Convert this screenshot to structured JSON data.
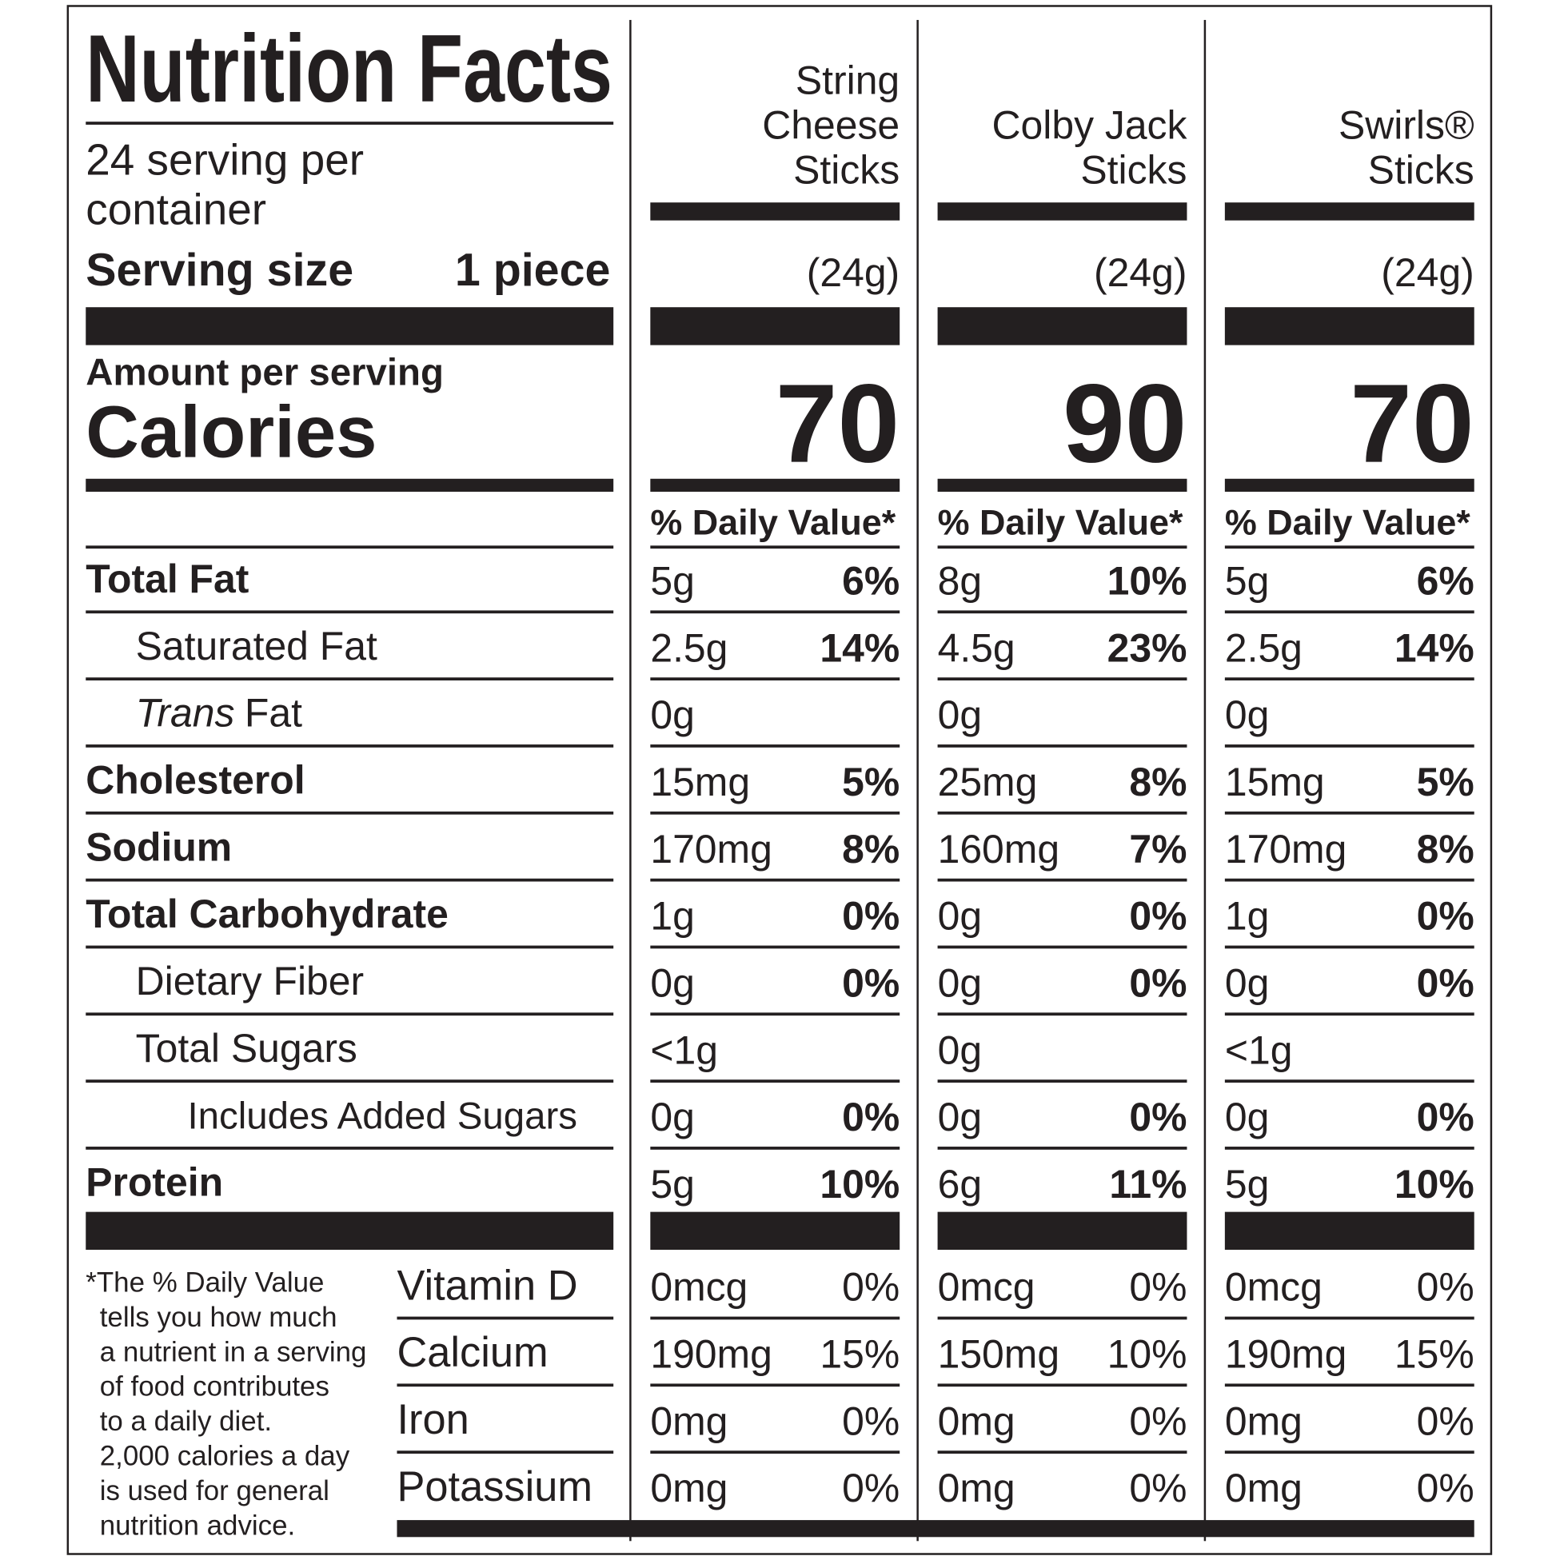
{
  "title": "Nutrition Facts",
  "servings_per_container": [
    "24 serving per",
    "container"
  ],
  "serving_size_label": "Serving size",
  "serving_size_value": "1 piece",
  "amount_per_serving": "Amount per serving",
  "calories_label": "Calories",
  "products": [
    {
      "name": [
        "String",
        "Cheese",
        "Sticks"
      ],
      "weight": "(24g)",
      "calories": 70,
      "daily_value_header": "% Daily Value*"
    },
    {
      "name": [
        "Colby Jack",
        "Sticks"
      ],
      "weight": "(24g)",
      "calories": 90,
      "daily_value_header": "% Daily Value*"
    },
    {
      "name": [
        "Swirls®",
        "Sticks"
      ],
      "weight": "(24g)",
      "calories": 70,
      "daily_value_header": "% Daily Value*"
    }
  ],
  "nutrients": [
    {
      "label": "Total Fat",
      "bold": true,
      "indent": 0,
      "amounts": [
        "5g",
        "8g",
        "5g"
      ],
      "daily_values": [
        "6%",
        "10%",
        "6%"
      ]
    },
    {
      "label": "Saturated Fat",
      "bold": false,
      "indent": 1,
      "amounts": [
        "2.5g",
        "4.5g",
        "2.5g"
      ],
      "daily_values": [
        "14%",
        "23%",
        "14%"
      ]
    },
    {
      "label_italic": "Trans",
      "label": "Fat",
      "bold": false,
      "indent": 1,
      "amounts": [
        "0g",
        "0g",
        "0g"
      ],
      "daily_values": [
        null,
        null,
        null
      ]
    },
    {
      "label": "Cholesterol",
      "bold": true,
      "indent": 0,
      "amounts": [
        "15mg",
        "25mg",
        "15mg"
      ],
      "daily_values": [
        "5%",
        "8%",
        "5%"
      ]
    },
    {
      "label": "Sodium",
      "bold": true,
      "indent": 0,
      "amounts": [
        "170mg",
        "160mg",
        "170mg"
      ],
      "daily_values": [
        "8%",
        "7%",
        "8%"
      ]
    },
    {
      "label": "Total Carbohydrate",
      "bold": true,
      "indent": 0,
      "amounts": [
        "1g",
        "0g",
        "1g"
      ],
      "daily_values": [
        "0%",
        "0%",
        "0%"
      ]
    },
    {
      "label": "Dietary Fiber",
      "bold": false,
      "indent": 1,
      "amounts": [
        "0g",
        "0g",
        "0g"
      ],
      "daily_values": [
        "0%",
        "0%",
        "0%"
      ]
    },
    {
      "label": "Total Sugars",
      "bold": false,
      "indent": 1,
      "amounts": [
        "<1g",
        "0g",
        "<1g"
      ],
      "daily_values": [
        null,
        null,
        null
      ]
    },
    {
      "label": "Includes Added Sugars",
      "bold": false,
      "indent": 2,
      "amounts": [
        "0g",
        "0g",
        "0g"
      ],
      "daily_values": [
        "0%",
        "0%",
        "0%"
      ]
    },
    {
      "label": "Protein",
      "bold": true,
      "indent": 0,
      "amounts": [
        "5g",
        "6g",
        "5g"
      ],
      "daily_values": [
        "10%",
        "11%",
        "10%"
      ]
    }
  ],
  "vitamins": [
    {
      "label": "Vitamin D",
      "amounts": [
        "0mcg",
        "0mcg",
        "0mcg"
      ],
      "daily_values": [
        "0%",
        "0%",
        "0%"
      ]
    },
    {
      "label": "Calcium",
      "amounts": [
        "190mg",
        "150mg",
        "190mg"
      ],
      "daily_values": [
        "15%",
        "10%",
        "15%"
      ]
    },
    {
      "label": "Iron",
      "amounts": [
        "0mg",
        "0mg",
        "0mg"
      ],
      "daily_values": [
        "0%",
        "0%",
        "0%"
      ]
    },
    {
      "label": "Potassium",
      "amounts": [
        "0mg",
        "0mg",
        "0mg"
      ],
      "daily_values": [
        "0%",
        "0%",
        "0%"
      ]
    }
  ],
  "footnote": [
    "*The % Daily Value",
    "tells you how much",
    "a nutrient in a serving",
    "of food contributes",
    "to a daily diet.",
    "2,000 calories a day",
    "is used for general",
    "nutrition advice."
  ]
}
